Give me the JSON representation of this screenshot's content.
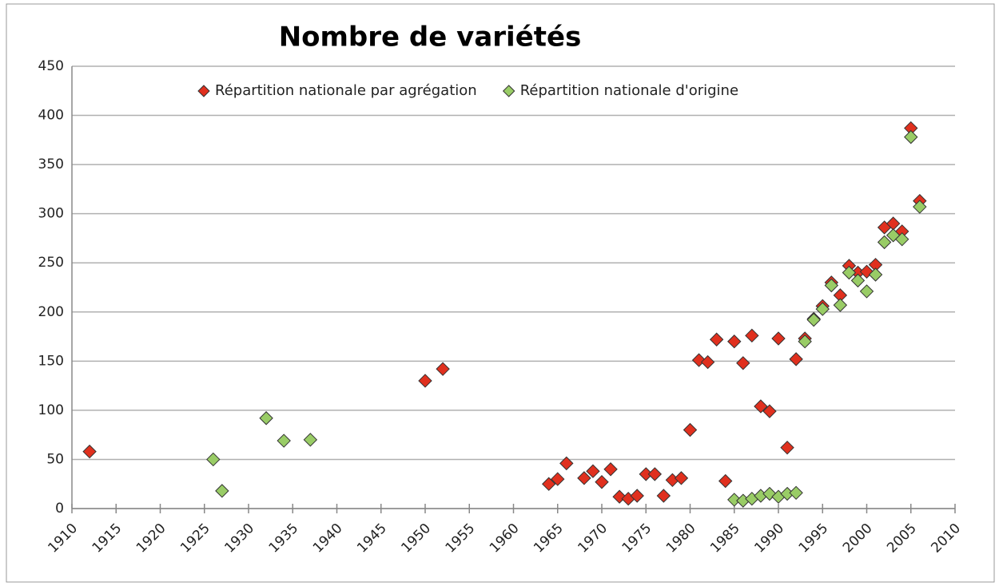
{
  "chart_data": {
    "type": "scatter",
    "title": "Nombre de variétés",
    "xlim": [
      1910,
      2010
    ],
    "xticks": [
      1910,
      1915,
      1920,
      1925,
      1930,
      1935,
      1940,
      1945,
      1950,
      1955,
      1960,
      1965,
      1970,
      1975,
      1980,
      1985,
      1990,
      1995,
      2000,
      2005,
      2010
    ],
    "ylim": [
      0,
      450
    ],
    "yticks": [
      0,
      50,
      100,
      150,
      200,
      250,
      300,
      350,
      400,
      450
    ],
    "grid": true,
    "legend": "top",
    "series": [
      {
        "name": "Répartition nationale par agrégation",
        "color": "#e0301e",
        "x": [
          1912,
          1950,
          1952,
          1964,
          1965,
          1966,
          1968,
          1969,
          1970,
          1971,
          1972,
          1973,
          1974,
          1975,
          1976,
          1977,
          1978,
          1979,
          1980,
          1981,
          1982,
          1983,
          1984,
          1985,
          1986,
          1987,
          1988,
          1989,
          1990,
          1991,
          1992,
          1993,
          1994,
          1995,
          1996,
          1997,
          1998,
          1999,
          2000,
          2001,
          2002,
          2003,
          2004,
          2005,
          2006
        ],
        "values": [
          58,
          130,
          142,
          25,
          30,
          46,
          31,
          38,
          27,
          40,
          12,
          10,
          13,
          35,
          35,
          13,
          29,
          31,
          80,
          151,
          149,
          172,
          28,
          170,
          148,
          176,
          104,
          99,
          173,
          62,
          152,
          173,
          193,
          206,
          230,
          217,
          247,
          240,
          241,
          248,
          286,
          290,
          282,
          387,
          313
        ]
      },
      {
        "name": "Répartition nationale d'origine",
        "color": "#99cc66",
        "x": [
          1926,
          1927,
          1932,
          1934,
          1937,
          1985,
          1986,
          1987,
          1988,
          1989,
          1990,
          1991,
          1992,
          1993,
          1994,
          1995,
          1996,
          1997,
          1998,
          1999,
          2000,
          2001,
          2002,
          2003,
          2004,
          2005,
          2006
        ],
        "values": [
          50,
          18,
          92,
          69,
          70,
          9,
          8,
          10,
          13,
          15,
          12,
          15,
          16,
          170,
          192,
          203,
          227,
          207,
          240,
          232,
          221,
          238,
          271,
          278,
          274,
          378,
          307
        ]
      }
    ]
  }
}
